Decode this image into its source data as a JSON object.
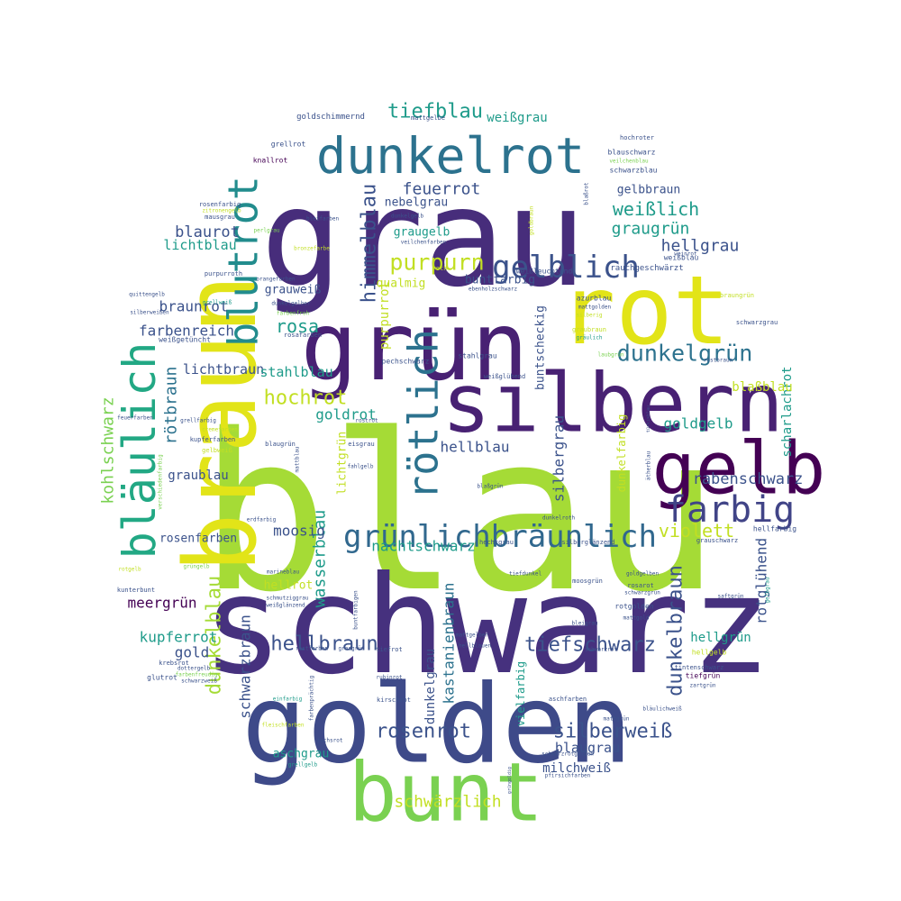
{
  "wordcloud": {
    "palette": [
      "#440154",
      "#472c7a",
      "#3b518b",
      "#2c718e",
      "#21908d",
      "#27ad81",
      "#5cc863",
      "#aadc32",
      "#fde725"
    ],
    "words": [
      {
        "text": "blau",
        "c": "#a5db36"
      },
      {
        "text": "grau",
        "c": "#472d7b"
      },
      {
        "text": "schwarz",
        "c": "#46317e"
      },
      {
        "text": "golden",
        "c": "#3e4a89"
      },
      {
        "text": "braun",
        "c": "#e2e418"
      },
      {
        "text": "rot",
        "c": "#e2e418"
      },
      {
        "text": "grün",
        "c": "#482173"
      },
      {
        "text": "silbern",
        "c": "#482173"
      },
      {
        "text": "bunt",
        "c": "#7ad151"
      },
      {
        "text": "gelb",
        "c": "#440154"
      },
      {
        "text": "dunkelrot",
        "c": "#2c728e"
      },
      {
        "text": "bläulich",
        "c": "#22a884"
      },
      {
        "text": "blutrot",
        "c": "#228c8d"
      },
      {
        "text": "rötlich",
        "c": "#2c728e"
      },
      {
        "text": "farbig",
        "c": "#414487"
      },
      {
        "text": "grünlichbräunlich",
        "c": "#31688e"
      },
      {
        "text": "gelblich",
        "c": "#3b528b"
      },
      {
        "text": "dunkelgrün",
        "c": "#2c728e"
      },
      {
        "text": "purpurn",
        "c": "#c2df23"
      },
      {
        "text": "hochrot",
        "c": "#c2df23"
      },
      {
        "text": "himmelblau",
        "c": "#3b528b"
      },
      {
        "text": "hellbraun",
        "c": "#3b528b"
      },
      {
        "text": "tiefschwarz",
        "c": "#3b528b"
      },
      {
        "text": "rosenrot",
        "c": "#3b528b"
      },
      {
        "text": "silberweiß",
        "c": "#3b528b"
      },
      {
        "text": "tiefblau",
        "c": "#1e9b8a"
      },
      {
        "text": "dunkelblau",
        "c": "#a5db36"
      },
      {
        "text": "dunkelbraun",
        "c": "#3b528b"
      },
      {
        "text": "weißlich",
        "c": "#1e9b8a"
      },
      {
        "text": "rosa",
        "c": "#1e9b8a"
      },
      {
        "text": "violett",
        "c": "#c2df23"
      },
      {
        "text": "feuerrot",
        "c": "#3b528b"
      },
      {
        "text": "kohlschwarz",
        "c": "#7ad151"
      },
      {
        "text": "wasserblau",
        "c": "#1e9b8a"
      },
      {
        "text": "schwärzlich",
        "c": "#c2df23"
      },
      {
        "text": "rötbraun",
        "c": "#2c728e"
      },
      {
        "text": "hellgrau",
        "c": "#3b528b"
      },
      {
        "text": "graugrün",
        "c": "#1e9b8a"
      },
      {
        "text": "blaurot",
        "c": "#3b528b"
      },
      {
        "text": "rabenschwarz",
        "c": "#3b528b"
      },
      {
        "text": "goldgelb",
        "c": "#1e9b8a"
      },
      {
        "text": "goldrot",
        "c": "#1e9b8a"
      },
      {
        "text": "hellblau",
        "c": "#3b528b"
      },
      {
        "text": "silbergrau",
        "c": "#3b528b"
      },
      {
        "text": "moosig",
        "c": "#3b528b"
      },
      {
        "text": "nachtschwarz",
        "c": "#1e9b8a"
      },
      {
        "text": "rotglühend",
        "c": "#3b528b"
      },
      {
        "text": "braunrot",
        "c": "#3b528b"
      },
      {
        "text": "farbenreich",
        "c": "#3b528b"
      },
      {
        "text": "meergrün",
        "c": "#440154"
      },
      {
        "text": "kupferrot",
        "c": "#1e9b8a"
      },
      {
        "text": "gold",
        "c": "#3b528b"
      },
      {
        "text": "schwarzbraun",
        "c": "#3b528b"
      },
      {
        "text": "kastanienbraun",
        "c": "#2c728e"
      },
      {
        "text": "dunkelgrau",
        "c": "#3b528b"
      },
      {
        "text": "lichtbraun",
        "c": "#3b528b"
      },
      {
        "text": "stahlblau",
        "c": "#1e9b8a"
      },
      {
        "text": "lichtblau",
        "c": "#1e9b8a"
      },
      {
        "text": "purpurrot",
        "c": "#c2df23"
      },
      {
        "text": "buntscheckig",
        "c": "#3b528b"
      },
      {
        "text": "scharlachrot",
        "c": "#1e9b8a"
      },
      {
        "text": "blaßblau",
        "c": "#c2df23"
      },
      {
        "text": "hellgrün",
        "c": "#1e9b8a"
      },
      {
        "text": "blaugrau",
        "c": "#3b528b"
      },
      {
        "text": "milchweiß",
        "c": "#3b528b"
      },
      {
        "text": "graublau",
        "c": "#3b528b"
      },
      {
        "text": "weißgrau",
        "c": "#1e9b8a"
      },
      {
        "text": "gelbbraun",
        "c": "#3b528b"
      },
      {
        "text": "nebelgrau",
        "c": "#3b528b"
      },
      {
        "text": "graugelb",
        "c": "#1e9b8a"
      },
      {
        "text": "grauweiß",
        "c": "#3b528b"
      },
      {
        "text": "qualmig",
        "c": "#c2df23"
      },
      {
        "text": "buntfarbig",
        "c": "#3b528b"
      },
      {
        "text": "dunkelfarbig",
        "c": "#c2df23"
      },
      {
        "text": "aschgrau",
        "c": "#1e9b8a"
      },
      {
        "text": "hellrot",
        "c": "#c2df23"
      },
      {
        "text": "rosenfarben",
        "c": "#3b528b"
      },
      {
        "text": "lichtgrün",
        "c": "#c2df23"
      },
      {
        "text": "vielfarbig",
        "c": "#1e9b8a"
      },
      {
        "text": "goldschimmernd",
        "c": "#3b528b"
      },
      {
        "text": "mattgelbe",
        "c": "#3b528b"
      },
      {
        "text": "grellrot",
        "c": "#3b528b"
      },
      {
        "text": "knallrot",
        "c": "#440154"
      },
      {
        "text": "blauschwarz",
        "c": "#3b528b"
      },
      {
        "text": "schwarzblau",
        "c": "#3b528b"
      },
      {
        "text": "hochroter",
        "c": "#3b528b"
      },
      {
        "text": "veilchenblau",
        "c": "#7ad151"
      },
      {
        "text": "rosenfarbig",
        "c": "#3b528b"
      },
      {
        "text": "zitronengelb",
        "c": "#c2df23"
      },
      {
        "text": "mausgrau",
        "c": "#3b528b"
      },
      {
        "text": "bleifarben",
        "c": "#3b528b"
      },
      {
        "text": "perlgrau",
        "c": "#7ad151"
      },
      {
        "text": "dunkelgelb",
        "c": "#3b528b"
      },
      {
        "text": "veilchenfarben",
        "c": "#3b528b"
      },
      {
        "text": "bronzefarbe",
        "c": "#c2df23"
      },
      {
        "text": "weißleuchtend",
        "c": "#3b528b"
      },
      {
        "text": "weißblau",
        "c": "#3b528b"
      },
      {
        "text": "weinrot",
        "c": "#3b528b"
      },
      {
        "text": "rauchgeschwärzt",
        "c": "#3b528b"
      },
      {
        "text": "purpurroth",
        "c": "#3b528b"
      },
      {
        "text": "orangefarben",
        "c": "#3b528b"
      },
      {
        "text": "roth",
        "c": "#c2df23"
      },
      {
        "text": "ebenholzschwarz",
        "c": "#3b528b"
      },
      {
        "text": "quittengelb",
        "c": "#3b528b"
      },
      {
        "text": "grellweiß",
        "c": "#1e9b8a"
      },
      {
        "text": "silberweißen",
        "c": "#3b528b"
      },
      {
        "text": "dunkelgelber",
        "c": "#3b528b"
      },
      {
        "text": "farbenfroh",
        "c": "#7ad151"
      },
      {
        "text": "weißgetüncht",
        "c": "#3b528b"
      },
      {
        "text": "rosafarben",
        "c": "#3b528b"
      },
      {
        "text": "azurblau",
        "c": "#3b528b"
      },
      {
        "text": "mattgolden",
        "c": "#3b528b"
      },
      {
        "text": "silberig",
        "c": "#c2df23"
      },
      {
        "text": "graubraun",
        "c": "#c2df23"
      },
      {
        "text": "gräulich",
        "c": "#1e9b8a"
      },
      {
        "text": "braungrün",
        "c": "#c2df23"
      },
      {
        "text": "schwarzgrau",
        "c": "#3b528b"
      },
      {
        "text": "stahlgrau",
        "c": "#3b528b"
      },
      {
        "text": "pechschwarz",
        "c": "#3b528b"
      },
      {
        "text": "weißglühend",
        "c": "#3b528b"
      },
      {
        "text": "laubgrün",
        "c": "#7ad151"
      },
      {
        "text": "rostbraun",
        "c": "#3b528b"
      },
      {
        "text": "goldbraun",
        "c": "#c2df23"
      },
      {
        "text": "blaßrot",
        "c": "#3b528b"
      },
      {
        "text": "blaßgrün",
        "c": "#3b528b"
      },
      {
        "text": "eisgrau",
        "c": "#3b528b"
      },
      {
        "text": "fahlgelb",
        "c": "#3b528b"
      },
      {
        "text": "blaugrün",
        "c": "#3b528b"
      },
      {
        "text": "rostrot",
        "c": "#3b528b"
      },
      {
        "text": "feuerfarben",
        "c": "#3b528b"
      },
      {
        "text": "grellfarbig",
        "c": "#3b528b"
      },
      {
        "text": "cremefarben",
        "c": "#c2df23"
      },
      {
        "text": "kupferfarben",
        "c": "#3b528b"
      },
      {
        "text": "gelbweiß",
        "c": "#c2df23"
      },
      {
        "text": "verschiedenfarbig",
        "c": "#7ad151"
      },
      {
        "text": "mattblau",
        "c": "#3b528b"
      },
      {
        "text": "türkisblau",
        "c": "#3b528b"
      },
      {
        "text": "ätherblau",
        "c": "#3b528b"
      },
      {
        "text": "erdfarbig",
        "c": "#3b528b"
      },
      {
        "text": "dunkelroth",
        "c": "#3b528b"
      },
      {
        "text": "hechtgrau",
        "c": "#3b528b"
      },
      {
        "text": "silberglänzend",
        "c": "#3b528b"
      },
      {
        "text": "grauschwarz",
        "c": "#3b528b"
      },
      {
        "text": "hellfarbig",
        "c": "#3b528b"
      },
      {
        "text": "goldgelben",
        "c": "#3b528b"
      },
      {
        "text": "rosarot",
        "c": "#3b528b"
      },
      {
        "text": "schwarzgrün",
        "c": "#3b528b"
      },
      {
        "text": "rotgolden",
        "c": "#3b528b"
      },
      {
        "text": "mattgold",
        "c": "#3b528b"
      },
      {
        "text": "saftgrün",
        "c": "#3b528b"
      },
      {
        "text": "moosgrün",
        "c": "#3b528b"
      },
      {
        "text": "tiefdunkel",
        "c": "#3b528b"
      },
      {
        "text": "schmutziggrau",
        "c": "#3b528b"
      },
      {
        "text": "weißglänzend",
        "c": "#3b528b"
      },
      {
        "text": "marineblau",
        "c": "#3b528b"
      },
      {
        "text": "grüngelb",
        "c": "#7ad151"
      },
      {
        "text": "rotgelb",
        "c": "#c2df23"
      },
      {
        "text": "kunterbunt",
        "c": "#3b528b"
      },
      {
        "text": "buntfarbigen",
        "c": "#3b528b"
      },
      {
        "text": "rostfarben",
        "c": "#3b528b"
      },
      {
        "text": "grasgrün",
        "c": "#3b528b"
      },
      {
        "text": "tiefrot",
        "c": "#3b528b"
      },
      {
        "text": "hellblauen",
        "c": "#3b528b"
      },
      {
        "text": "mattgelber",
        "c": "#3b528b"
      },
      {
        "text": "schwarzrot",
        "c": "#3b528b"
      },
      {
        "text": "hellgelb",
        "c": "#c2df23"
      },
      {
        "text": "tintenschwarz",
        "c": "#3b528b"
      },
      {
        "text": "tiefgrün",
        "c": "#440154"
      },
      {
        "text": "zartgrün",
        "c": "#3b528b"
      },
      {
        "text": "bleigrau",
        "c": "#3b528b"
      },
      {
        "text": "krebsrot",
        "c": "#3b528b"
      },
      {
        "text": "dottergelb",
        "c": "#3b528b"
      },
      {
        "text": "farbenfreudig",
        "c": "#7ad151"
      },
      {
        "text": "schwarzweiß",
        "c": "#3b528b"
      },
      {
        "text": "glutrot",
        "c": "#3b528b"
      },
      {
        "text": "einfarbig",
        "c": "#1e9b8a"
      },
      {
        "text": "farbenprächtig",
        "c": "#3b528b"
      },
      {
        "text": "rubinrot",
        "c": "#3b528b"
      },
      {
        "text": "kirschrot",
        "c": "#3b528b"
      },
      {
        "text": "fleischfarben",
        "c": "#c2df23"
      },
      {
        "text": "aschfarben",
        "c": "#3b528b"
      },
      {
        "text": "mattgrün",
        "c": "#3b528b"
      },
      {
        "text": "bläulichweiß",
        "c": "#3b528b"
      },
      {
        "text": "schwarzrotgolden",
        "c": "#3b528b"
      },
      {
        "text": "pfirsichfarben",
        "c": "#3b528b"
      },
      {
        "text": "fuchsrot",
        "c": "#3b528b"
      },
      {
        "text": "grellgelb",
        "c": "#1e9b8a"
      },
      {
        "text": "grüngoldig",
        "c": "#3b528b"
      },
      {
        "text": "gelbgrau",
        "c": "#1e9b8a"
      }
    ]
  }
}
